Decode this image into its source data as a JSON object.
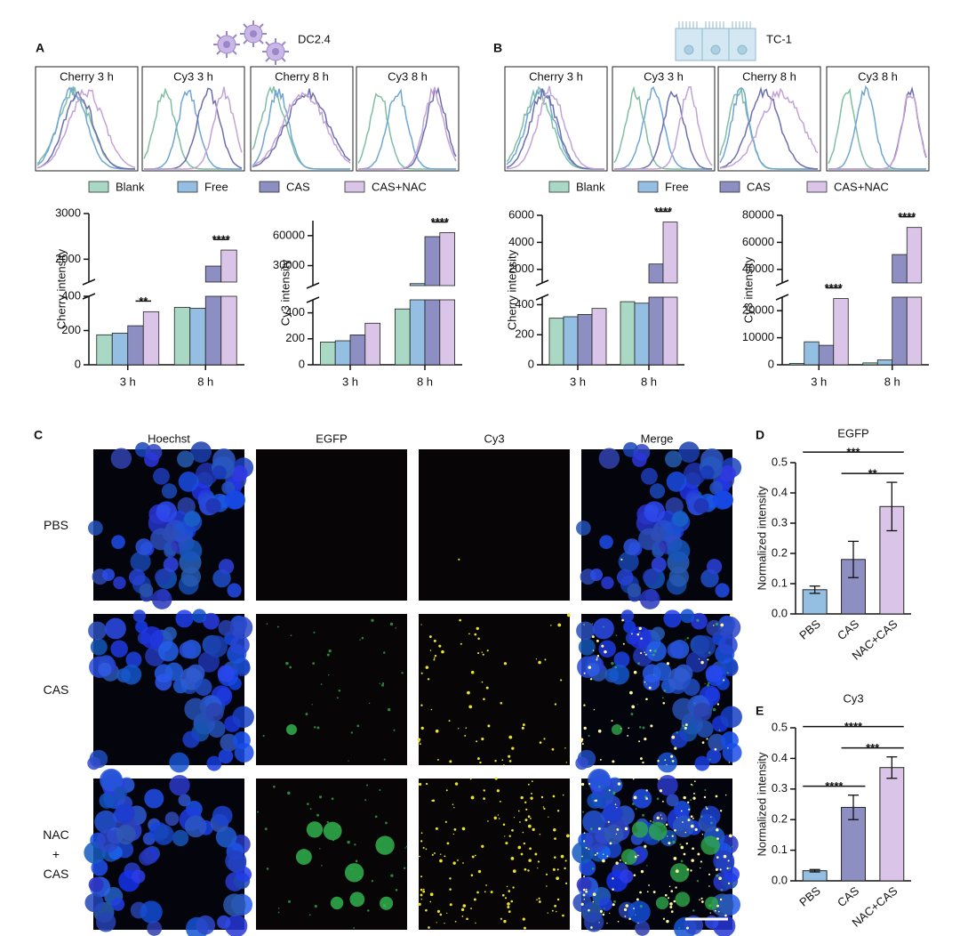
{
  "labels": {
    "a": "A",
    "b": "B",
    "c": "C",
    "d": "D",
    "e": "E",
    "dc": "DC2.4",
    "tc": "TC-1"
  },
  "histograms": {
    "A": [
      "Cherry 3 h",
      "Cy3 3 h",
      "Cherry 8 h",
      "Cy3 8 h"
    ],
    "B": [
      "Cherry 3 h",
      "Cy3 3 h",
      "Cherry 8 h",
      "Cy3 8 h"
    ]
  },
  "microscopy": {
    "columns": [
      "Hoechst",
      "EGFP",
      "Cy3",
      "Merge"
    ],
    "rows": [
      "PBS",
      "CAS",
      "NAC\n+\nCAS"
    ]
  },
  "chart_data": [
    {
      "type": "grouped_bar",
      "ylabel": "Cherry intensity",
      "categories": [
        "3 h",
        "8 h"
      ],
      "series": [
        {
          "name": "Blank",
          "color": "#a9d8c4",
          "values": [
            175,
            335
          ]
        },
        {
          "name": "Free",
          "color": "#94bfe2",
          "values": [
            185,
            330
          ]
        },
        {
          "name": "CAS",
          "color": "#8d8ec2",
          "values": [
            228,
            1850
          ]
        },
        {
          "name": "CAS+NAC",
          "color": "#dac5e8",
          "values": [
            310,
            2200
          ]
        }
      ],
      "ylim_segments": [
        {
          "ylim": [
            0,
            400
          ],
          "yticks": [
            0,
            200,
            400
          ]
        },
        {
          "ylim": [
            1500,
            3000
          ],
          "yticks": [
            2000,
            3000
          ]
        }
      ],
      "annotations": [
        {
          "text": "**",
          "category": "3 h",
          "series": [
            "CAS",
            "CAS+NAC"
          ]
        },
        {
          "text": "****",
          "category": "8 h",
          "series": [
            "CAS",
            "CAS+NAC"
          ]
        }
      ]
    },
    {
      "type": "grouped_bar",
      "ylabel": "Cy3 intensity",
      "categories": [
        "3 h",
        "8 h"
      ],
      "series": [
        {
          "name": "Blank",
          "color": "#a9d8c4",
          "values": [
            175,
            430
          ]
        },
        {
          "name": "Free",
          "color": "#94bfe2",
          "values": [
            185,
            12000
          ]
        },
        {
          "name": "CAS",
          "color": "#8d8ec2",
          "values": [
            230,
            59000
          ]
        },
        {
          "name": "CAS+NAC",
          "color": "#dac5e8",
          "values": [
            320,
            63000
          ]
        }
      ],
      "ylim_segments": [
        {
          "ylim": [
            0,
            500
          ],
          "yticks": [
            0,
            200,
            400
          ]
        },
        {
          "ylim": [
            10000,
            75000
          ],
          "yticks": [
            30000,
            60000
          ]
        }
      ],
      "annotations": [
        {
          "text": "****",
          "category": "8 h",
          "series": [
            "CAS",
            "CAS+NAC"
          ]
        }
      ]
    },
    {
      "type": "grouped_bar",
      "ylabel": "Cherry intensity",
      "categories": [
        "3 h",
        "8 h"
      ],
      "series": [
        {
          "name": "Blank",
          "color": "#a9d8c4",
          "values": [
            310,
            420
          ]
        },
        {
          "name": "Free",
          "color": "#94bfe2",
          "values": [
            320,
            410
          ]
        },
        {
          "name": "CAS",
          "color": "#8d8ec2",
          "values": [
            335,
            2400
          ]
        },
        {
          "name": "CAS+NAC",
          "color": "#dac5e8",
          "values": [
            375,
            5500
          ]
        }
      ],
      "ylim_segments": [
        {
          "ylim": [
            0,
            450
          ],
          "yticks": [
            0,
            200,
            400
          ]
        },
        {
          "ylim": [
            1000,
            6000
          ],
          "yticks": [
            2000,
            4000,
            6000
          ]
        }
      ],
      "annotations": [
        {
          "text": "****",
          "category": "8 h",
          "series": [
            "CAS",
            "CAS+NAC"
          ]
        }
      ]
    },
    {
      "type": "grouped_bar",
      "ylabel": "Cy3 intensity",
      "categories": [
        "3 h",
        "8 h"
      ],
      "series": [
        {
          "name": "Blank",
          "color": "#a9d8c4",
          "values": [
            500,
            700
          ]
        },
        {
          "name": "Free",
          "color": "#94bfe2",
          "values": [
            8500,
            1800
          ]
        },
        {
          "name": "CAS",
          "color": "#8d8ec2",
          "values": [
            7200,
            51000
          ]
        },
        {
          "name": "CAS+NAC",
          "color": "#dac5e8",
          "values": [
            24500,
            71000
          ]
        }
      ],
      "ylim_segments": [
        {
          "ylim": [
            0,
            25000
          ],
          "yticks": [
            0,
            10000,
            20000
          ]
        },
        {
          "ylim": [
            30000,
            80000
          ],
          "yticks": [
            40000,
            60000,
            80000
          ]
        }
      ],
      "annotations": [
        {
          "text": "****",
          "category": "3 h",
          "series": [
            "CAS",
            "CAS+NAC"
          ]
        },
        {
          "text": "****",
          "category": "8 h",
          "series": [
            "CAS",
            "CAS+NAC"
          ]
        }
      ]
    },
    {
      "type": "bar",
      "title": "EGFP",
      "ylabel": "Normalized intensity",
      "categories": [
        "PBS",
        "CAS",
        "NAC+CAS"
      ],
      "colors": [
        "#94bfe2",
        "#8d8ec2",
        "#dac5e8"
      ],
      "values": [
        0.08,
        0.18,
        0.355
      ],
      "errors": [
        0.012,
        0.06,
        0.08
      ],
      "ylim": [
        0,
        0.5
      ],
      "yticks": [
        {
          "value": 0,
          "label": "0.0"
        },
        0.1,
        0.2,
        0.3,
        0.4,
        0.5
      ],
      "annotations": [
        {
          "text": "***",
          "categories": [
            "PBS",
            "NAC+CAS"
          ]
        },
        {
          "text": "**",
          "categories": [
            "CAS",
            "NAC+CAS"
          ]
        }
      ]
    },
    {
      "type": "bar",
      "title": "Cy3",
      "ylabel": "Normalized intensity",
      "categories": [
        "PBS",
        "CAS",
        "NAC+CAS"
      ],
      "colors": [
        "#94bfe2",
        "#8d8ec2",
        "#dac5e8"
      ],
      "values": [
        0.033,
        0.24,
        0.37
      ],
      "errors": [
        0.004,
        0.04,
        0.035
      ],
      "ylim": [
        0,
        0.5
      ],
      "yticks": [
        {
          "value": 0,
          "label": "0.0"
        },
        0.1,
        0.2,
        0.3,
        0.4,
        0.5
      ],
      "annotations": [
        {
          "text": "****",
          "categories": [
            "PBS",
            "NAC+CAS"
          ]
        },
        {
          "text": "***",
          "categories": [
            "CAS",
            "NAC+CAS"
          ]
        },
        {
          "text": "****",
          "categories": [
            "PBS",
            "CAS"
          ]
        }
      ]
    }
  ]
}
